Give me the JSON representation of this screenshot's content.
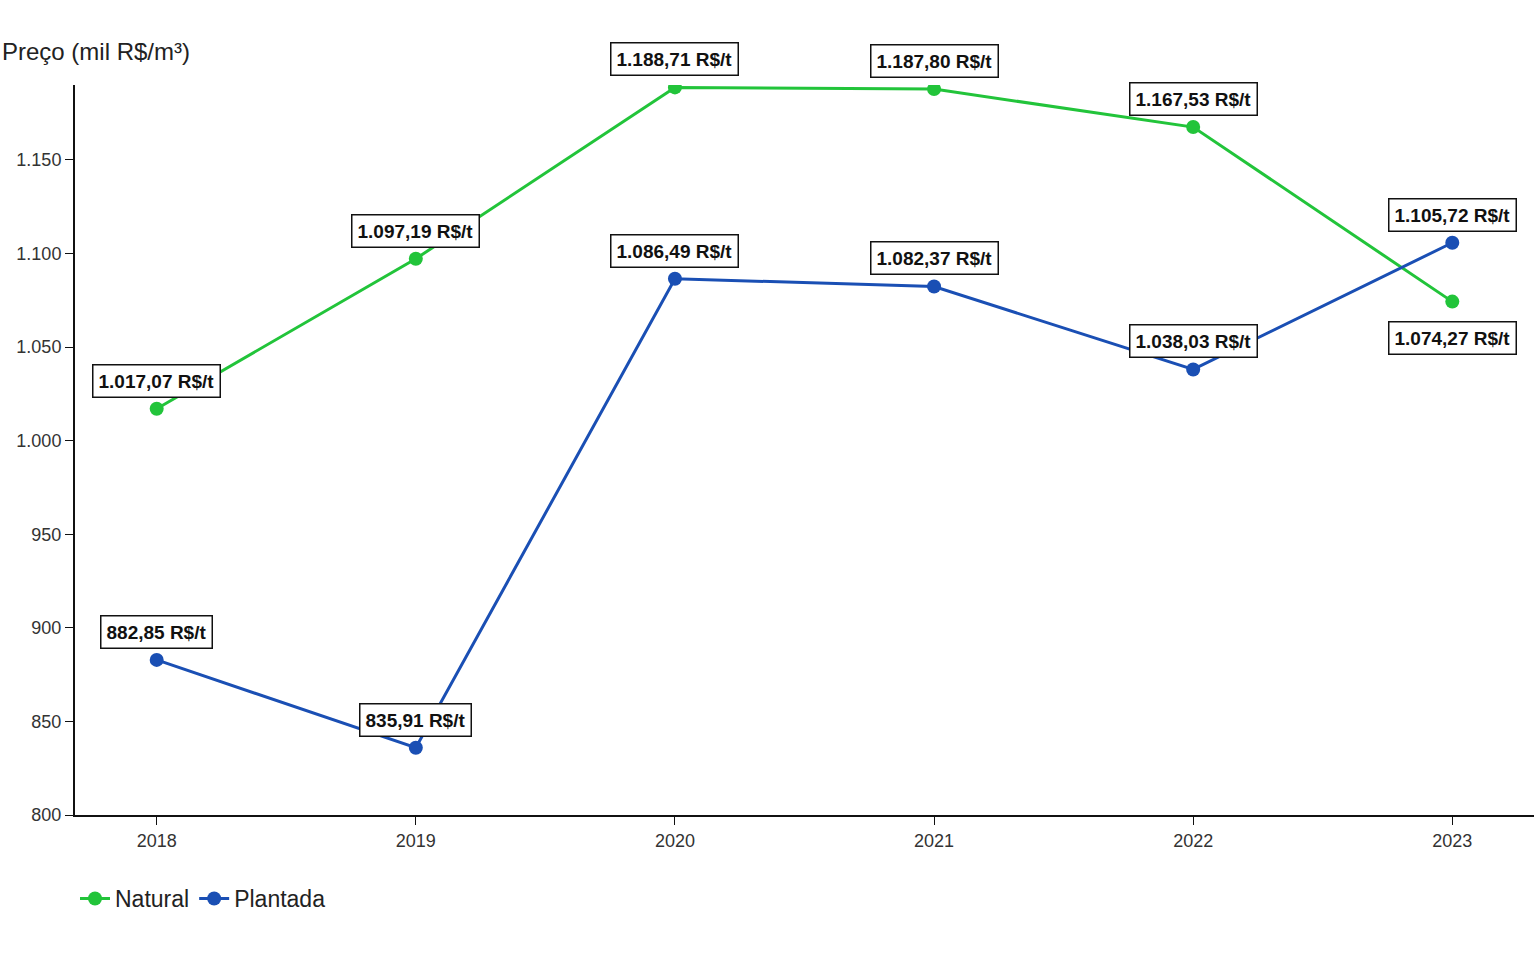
{
  "chart_data": {
    "type": "line",
    "ylabel": "Preço (mil R$/m³)",
    "categories": [
      "2018",
      "2019",
      "2020",
      "2021",
      "2022",
      "2023"
    ],
    "series": [
      {
        "name": "Natural",
        "color": "#22c43a",
        "marker": "circle",
        "values": [
          1017.07,
          1097.19,
          1188.71,
          1187.8,
          1167.53,
          1074.27
        ],
        "value_labels": [
          "1.017,07 R$/t",
          "1.097,19 R$/t",
          "1.188,71 R$/t",
          "1.187,80 R$/t",
          "1.167,53 R$/t",
          "1.074,27 R$/t"
        ]
      },
      {
        "name": "Plantada",
        "color": "#1a4fb4",
        "marker": "circle",
        "values": [
          882.85,
          835.91,
          1086.49,
          1082.37,
          1038.03,
          1105.72
        ],
        "value_labels": [
          "882,85 R$/t",
          "835,91 R$/t",
          "1.086,49 R$/t",
          "1.082,37 R$/t",
          "1.038,03 R$/t",
          "1.105,72 R$/t"
        ]
      }
    ],
    "ylim": [
      800,
      1190
    ],
    "yticks": [
      800,
      850,
      900,
      950,
      {
        "value": 1000,
        "label": "1.000"
      },
      {
        "value": 1050,
        "label": "1.050"
      },
      {
        "value": 1100,
        "label": "1.100"
      },
      {
        "value": 1150,
        "label": "1.150"
      }
    ],
    "grid": false,
    "legend": "bottom left",
    "data_labels": true
  }
}
